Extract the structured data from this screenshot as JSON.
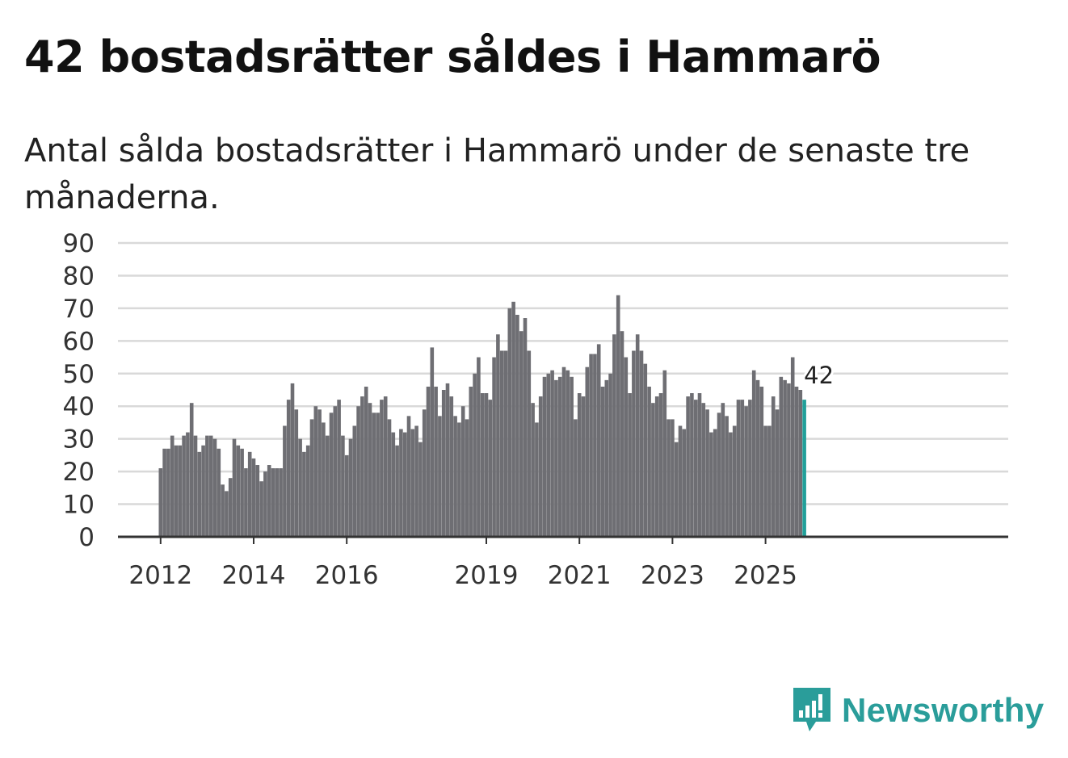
{
  "title": "42 bostadsrätter såldes i Hammarö",
  "subtitle": "Antal sålda bostadsrätter i Hammarö under de senaste tre månaderna.",
  "brand": {
    "name": "Newsworthy",
    "color": "#2a9d9a",
    "icon": "newsworthy-logo-icon"
  },
  "colors": {
    "bar": "#6e6e73",
    "highlight": "#21a09a",
    "grid": "#d9d9d9",
    "axis": "#333333"
  },
  "chart_data": {
    "type": "bar",
    "title": "42 bostadsrätter såldes i Hammarö",
    "xlabel": "",
    "ylabel": "",
    "ylim": [
      0,
      90
    ],
    "yticks": [
      0,
      10,
      20,
      30,
      40,
      50,
      60,
      70,
      80,
      90
    ],
    "start_year": 2012,
    "xtick_labels": [
      "2012",
      "2014",
      "2016",
      "2019",
      "2021",
      "2023",
      "2025"
    ],
    "highlight_label": "42",
    "values": [
      21,
      27,
      27,
      31,
      28,
      28,
      31,
      32,
      41,
      31,
      26,
      28,
      31,
      31,
      30,
      27,
      16,
      14,
      18,
      30,
      28,
      27,
      21,
      26,
      24,
      22,
      17,
      20,
      22,
      21,
      21,
      21,
      34,
      42,
      47,
      39,
      30,
      26,
      28,
      36,
      40,
      39,
      35,
      31,
      38,
      40,
      42,
      31,
      25,
      30,
      34,
      40,
      43,
      46,
      41,
      38,
      38,
      42,
      43,
      36,
      32,
      28,
      33,
      32,
      37,
      33,
      34,
      29,
      39,
      46,
      58,
      46,
      37,
      45,
      47,
      43,
      37,
      35,
      40,
      36,
      46,
      50,
      55,
      44,
      44,
      42,
      55,
      62,
      57,
      57,
      70,
      72,
      68,
      63,
      67,
      57,
      41,
      35,
      43,
      49,
      50,
      51,
      48,
      49,
      52,
      51,
      49,
      36,
      44,
      43,
      52,
      56,
      56,
      59,
      46,
      48,
      50,
      62,
      74,
      63,
      55,
      44,
      57,
      62,
      57,
      53,
      46,
      41,
      43,
      44,
      51,
      36,
      36,
      29,
      34,
      33,
      43,
      44,
      42,
      44,
      41,
      39,
      32,
      33,
      38,
      41,
      37,
      32,
      34,
      42,
      42,
      40,
      42,
      51,
      48,
      46,
      34,
      34,
      43,
      39,
      49,
      48,
      47,
      55,
      46,
      45,
      42
    ]
  }
}
